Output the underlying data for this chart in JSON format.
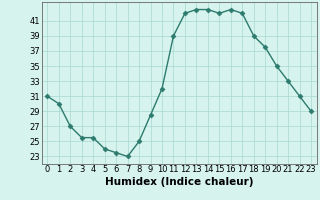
{
  "x": [
    0,
    1,
    2,
    3,
    4,
    5,
    6,
    7,
    8,
    9,
    10,
    11,
    12,
    13,
    14,
    15,
    16,
    17,
    18,
    19,
    20,
    21,
    22,
    23
  ],
  "y": [
    31,
    30,
    27,
    25.5,
    25.5,
    24,
    23.5,
    23,
    25,
    28.5,
    32,
    39,
    42,
    42.5,
    42.5,
    42,
    42.5,
    42,
    39,
    37.5,
    35,
    33,
    31,
    29
  ],
  "line_color": "#2d7b6e",
  "marker": "D",
  "marker_size": 2.5,
  "bg_color": "#d6f3ee",
  "grid_color": "#a8d8d0",
  "xlabel": "Humidex (Indice chaleur)",
  "xlabel_fontsize": 7.5,
  "ylabel_ticks": [
    23,
    25,
    27,
    29,
    31,
    33,
    35,
    37,
    39,
    41
  ],
  "xlim": [
    -0.5,
    23.5
  ],
  "ylim": [
    22.0,
    43.5
  ],
  "xticks": [
    0,
    1,
    2,
    3,
    4,
    5,
    6,
    7,
    8,
    9,
    10,
    11,
    12,
    13,
    14,
    15,
    16,
    17,
    18,
    19,
    20,
    21,
    22,
    23
  ],
  "tick_fontsize": 6,
  "linewidth": 1.0
}
